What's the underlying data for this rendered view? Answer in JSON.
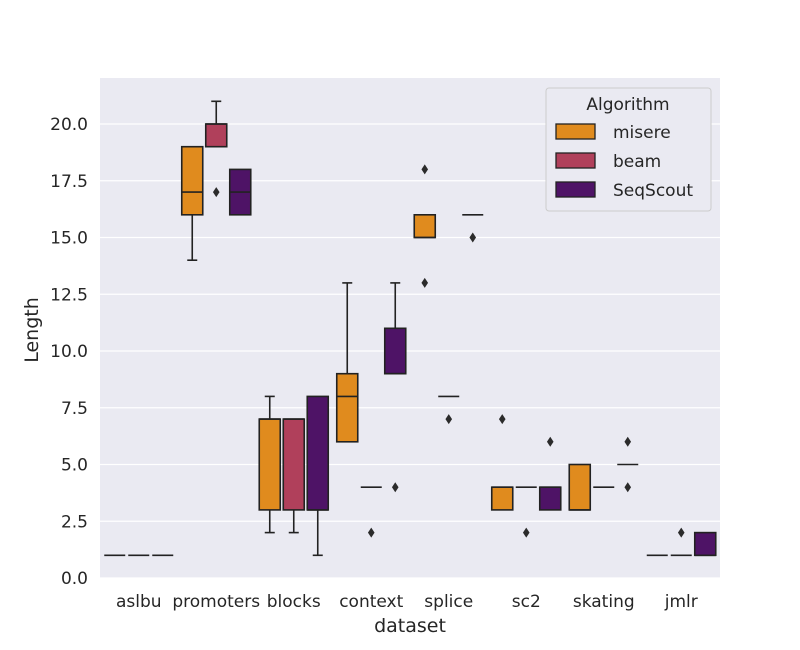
{
  "chart_data": {
    "type": "boxplot",
    "xlabel": "dataset",
    "ylabel": "Length",
    "ylim": [
      0,
      21.8
    ],
    "yticks": [
      "0.0",
      "2.5",
      "5.0",
      "7.5",
      "10.0",
      "12.5",
      "15.0",
      "17.5",
      "20.0"
    ],
    "categories": [
      "aslbu",
      "promoters",
      "blocks",
      "context",
      "splice",
      "sc2",
      "skating",
      "jmlr"
    ],
    "grid": true,
    "legend": {
      "title": "Algorithm",
      "placement": "top-right"
    },
    "series": [
      {
        "name": "misere",
        "color": "#e08b1e",
        "boxes": [
          {
            "category": "aslbu",
            "q1": 1,
            "median": 1,
            "q3": 1,
            "whislo": 1,
            "whishi": 1,
            "fliers": []
          },
          {
            "category": "promoters",
            "q1": 16,
            "median": 17,
            "q3": 19,
            "whislo": 14,
            "whishi": 19,
            "fliers": []
          },
          {
            "category": "blocks",
            "q1": 3,
            "median": 7,
            "q3": 7,
            "whislo": 2,
            "whishi": 8,
            "fliers": []
          },
          {
            "category": "context",
            "q1": 6,
            "median": 8,
            "q3": 9,
            "whislo": 6,
            "whishi": 13,
            "fliers": []
          },
          {
            "category": "splice",
            "q1": 15,
            "median": 15,
            "q3": 16,
            "whislo": 15,
            "whishi": 16,
            "fliers": [
              18,
              13
            ]
          },
          {
            "category": "sc2",
            "q1": 3,
            "median": 4,
            "q3": 4,
            "whislo": 3,
            "whishi": 4,
            "fliers": [
              7
            ]
          },
          {
            "category": "skating",
            "q1": 3,
            "median": 3,
            "q3": 5,
            "whislo": 3,
            "whishi": 5,
            "fliers": []
          },
          {
            "category": "jmlr",
            "q1": 1,
            "median": 1,
            "q3": 1,
            "whislo": 1,
            "whishi": 1,
            "fliers": []
          }
        ]
      },
      {
        "name": "beam",
        "color": "#b0405b",
        "boxes": [
          {
            "category": "aslbu",
            "q1": 1,
            "median": 1,
            "q3": 1,
            "whislo": 1,
            "whishi": 1,
            "fliers": []
          },
          {
            "category": "promoters",
            "q1": 19,
            "median": 20,
            "q3": 20,
            "whislo": 19,
            "whishi": 21,
            "fliers": [
              17
            ]
          },
          {
            "category": "blocks",
            "q1": 3,
            "median": 7,
            "q3": 7,
            "whislo": 2,
            "whishi": 7,
            "fliers": []
          },
          {
            "category": "context",
            "q1": 4,
            "median": 4,
            "q3": 4,
            "whislo": 4,
            "whishi": 4,
            "fliers": [
              2
            ]
          },
          {
            "category": "splice",
            "q1": 8,
            "median": 8,
            "q3": 8,
            "whislo": 8,
            "whishi": 8,
            "fliers": [
              7
            ]
          },
          {
            "category": "sc2",
            "q1": 4,
            "median": 4,
            "q3": 4,
            "whislo": 4,
            "whishi": 4,
            "fliers": [
              2
            ]
          },
          {
            "category": "skating",
            "q1": 4,
            "median": 4,
            "q3": 4,
            "whislo": 4,
            "whishi": 4,
            "fliers": []
          },
          {
            "category": "jmlr",
            "q1": 1,
            "median": 1,
            "q3": 1,
            "whislo": 1,
            "whishi": 1,
            "fliers": [
              2
            ]
          }
        ]
      },
      {
        "name": "SeqScout",
        "color": "#4e1366",
        "boxes": [
          {
            "category": "aslbu",
            "q1": 1,
            "median": 1,
            "q3": 1,
            "whislo": 1,
            "whishi": 1,
            "fliers": []
          },
          {
            "category": "promoters",
            "q1": 16,
            "median": 17,
            "q3": 18,
            "whislo": 16,
            "whishi": 18,
            "fliers": []
          },
          {
            "category": "blocks",
            "q1": 3,
            "median": 3,
            "q3": 8,
            "whislo": 1,
            "whishi": 8,
            "fliers": []
          },
          {
            "category": "context",
            "q1": 9,
            "median": 9,
            "q3": 11,
            "whislo": 9,
            "whishi": 13,
            "fliers": [
              4
            ]
          },
          {
            "category": "splice",
            "q1": 16,
            "median": 16,
            "q3": 16,
            "whislo": 16,
            "whishi": 16,
            "fliers": [
              15
            ]
          },
          {
            "category": "sc2",
            "q1": 3,
            "median": 4,
            "q3": 4,
            "whislo": 3,
            "whishi": 4,
            "fliers": [
              6
            ]
          },
          {
            "category": "skating",
            "q1": 5,
            "median": 5,
            "q3": 5,
            "whislo": 5,
            "whishi": 5,
            "fliers": [
              6,
              4
            ]
          },
          {
            "category": "jmlr",
            "q1": 1,
            "median": 1,
            "q3": 2,
            "whislo": 1,
            "whishi": 2,
            "fliers": []
          }
        ]
      }
    ]
  }
}
